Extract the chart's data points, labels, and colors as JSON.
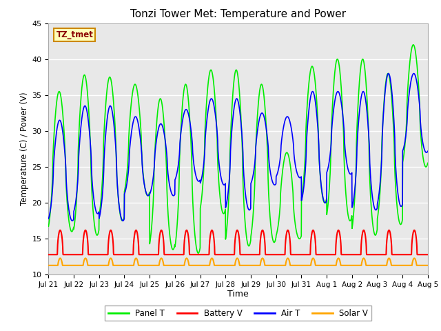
{
  "title": "Tonzi Tower Met: Temperature and Power",
  "xlabel": "Time",
  "ylabel": "Temperature (C) / Power (V)",
  "ylim": [
    10,
    45
  ],
  "yticks": [
    10,
    15,
    20,
    25,
    30,
    35,
    40,
    45
  ],
  "tz_label": "TZ_tmet",
  "legend_entries": [
    "Panel T",
    "Battery V",
    "Air T",
    "Solar V"
  ],
  "legend_colors": [
    "#00EE00",
    "#FF0000",
    "#0000FF",
    "#FFA500"
  ],
  "bg_color": "#E8E8E8",
  "fig_bg": "#FFFFFF",
  "n_days": 15,
  "xtick_labels": [
    "Jul 21",
    "Jul 22",
    "Jul 23",
    "Jul 24",
    "Jul 25",
    "Jul 26",
    "Jul 27",
    "Jul 28",
    "Jul 29",
    "Jul 30",
    "Jul 31",
    "Aug 1",
    "Aug 2",
    "Aug 3",
    "Aug 4",
    "Aug 5"
  ],
  "panel_peaks": [
    35.5,
    37.8,
    37.5,
    36.5,
    34.5,
    36.5,
    38.5,
    38.5,
    36.5,
    27.0,
    39.0,
    40.0,
    40.0,
    38.0,
    42.0
  ],
  "panel_troughs": [
    16.0,
    15.5,
    17.5,
    21.0,
    13.5,
    13.0,
    18.5,
    14.0,
    14.5,
    15.0,
    20.0,
    17.5,
    15.5,
    17.0,
    25.0
  ],
  "air_peaks": [
    31.5,
    33.5,
    33.5,
    32.0,
    31.0,
    33.0,
    34.5,
    34.5,
    32.5,
    32.0,
    35.5,
    35.5,
    35.5,
    38.0,
    38.0
  ],
  "air_troughs": [
    17.5,
    18.5,
    17.5,
    21.0,
    21.0,
    23.0,
    22.5,
    19.0,
    22.5,
    23.5,
    20.0,
    24.0,
    19.0,
    19.5,
    27.0
  ],
  "battery_peak": 16.2,
  "battery_base": 12.8,
  "solar_peak": 12.3,
  "solar_base": 11.3,
  "peak_phase": 0.42,
  "trough_phase": 0.0
}
